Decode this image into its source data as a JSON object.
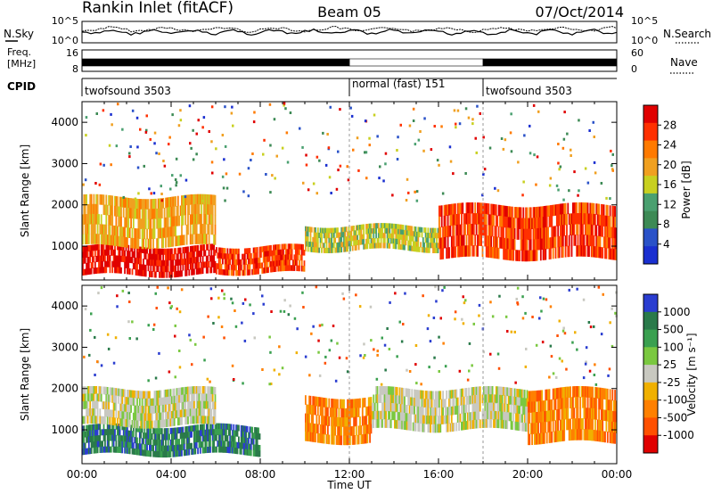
{
  "header": {
    "station": "Rankin Inlet (fitACF)",
    "beam": "Beam 05",
    "date": "07/Oct/2014"
  },
  "summary": {
    "nsky_label": "N.Sky",
    "nsky_ticks": [
      "10^5",
      "10^0"
    ],
    "nsearch_label": "N.Search",
    "nsearch_ticks": [
      "10^5",
      "10^0"
    ],
    "freq_label_1": "Freq.",
    "freq_label_2": "[MHz]",
    "freq_ticks": [
      "16",
      "8"
    ],
    "nave_label": "Nave",
    "nave_ticks": [
      "60",
      "0"
    ],
    "cpid_label": "CPID",
    "cpid_segments": [
      {
        "label": "twofsound 3503",
        "start_h": 0,
        "end_h": 12
      },
      {
        "label": "normal (fast) 151",
        "start_h": 12,
        "end_h": 18
      },
      {
        "label": "twofsound 3503",
        "start_h": 18,
        "end_h": 24
      }
    ]
  },
  "colors": {
    "power": [
      "#1a2fd0",
      "#2a52c8",
      "#3d8a55",
      "#4aa070",
      "#c8d020",
      "#f0a020",
      "#ff7a00",
      "#ff3000",
      "#e00000"
    ],
    "velocity": [
      "#2a3dd0",
      "#2a7a4a",
      "#3aa050",
      "#7ac840",
      "#c8c8c0",
      "#f0b000",
      "#ff8000",
      "#ff5000",
      "#e00000"
    ]
  },
  "chart_data": [
    {
      "type": "heatmap",
      "title": "",
      "xlabel": "",
      "ylabel": "Slant Range [km]",
      "xlim": [
        "00:00",
        "00:00"
      ],
      "ylim": [
        180,
        4500
      ],
      "x_ticks": [
        "00:00",
        "04:00",
        "08:00",
        "12:00",
        "16:00",
        "20:00",
        "00:00"
      ],
      "y_ticks": [
        "1000",
        "2000",
        "3000",
        "4000"
      ],
      "colorbar_label": "Power [dB]",
      "colorbar_ticks": [
        "4",
        "8",
        "12",
        "16",
        "20",
        "24",
        "28"
      ],
      "bands": [
        {
          "start_h": 0,
          "end_h": 6,
          "low_km": 300,
          "high_km": 1000,
          "level": 8
        },
        {
          "start_h": 0,
          "end_h": 6,
          "low_km": 1000,
          "high_km": 2200,
          "level": 5
        },
        {
          "start_h": 6,
          "end_h": 10,
          "low_km": 350,
          "high_km": 1000,
          "level": 7
        },
        {
          "start_h": 10,
          "end_h": 16,
          "low_km": 900,
          "high_km": 1500,
          "level": 4
        },
        {
          "start_h": 16,
          "end_h": 24,
          "low_km": 700,
          "high_km": 2000,
          "level": 7
        }
      ]
    },
    {
      "type": "heatmap",
      "title": "",
      "xlabel": "Time UT",
      "ylabel": "Slant Range [km]",
      "xlim": [
        "00:00",
        "00:00"
      ],
      "ylim": [
        180,
        4500
      ],
      "x_ticks": [
        "00:00",
        "04:00",
        "08:00",
        "12:00",
        "16:00",
        "20:00",
        "00:00"
      ],
      "y_ticks": [
        "1000",
        "2000",
        "3000",
        "4000"
      ],
      "colorbar_label": "Velocity [m s⁻¹]",
      "colorbar_ticks": [
        "1000",
        "500",
        "100",
        "25",
        "-25",
        "-100",
        "-500",
        "-1000"
      ],
      "bands": [
        {
          "start_h": 0,
          "end_h": 8,
          "low_km": 400,
          "high_km": 1100,
          "level": 1
        },
        {
          "start_h": 0,
          "end_h": 6,
          "low_km": 1100,
          "high_km": 2000,
          "level": 4
        },
        {
          "start_h": 10,
          "end_h": 13,
          "low_km": 700,
          "high_km": 1800,
          "level": 6
        },
        {
          "start_h": 13,
          "end_h": 20,
          "low_km": 1000,
          "high_km": 2000,
          "level": 4
        },
        {
          "start_h": 20,
          "end_h": 24,
          "low_km": 700,
          "high_km": 2000,
          "level": 6
        }
      ]
    }
  ]
}
